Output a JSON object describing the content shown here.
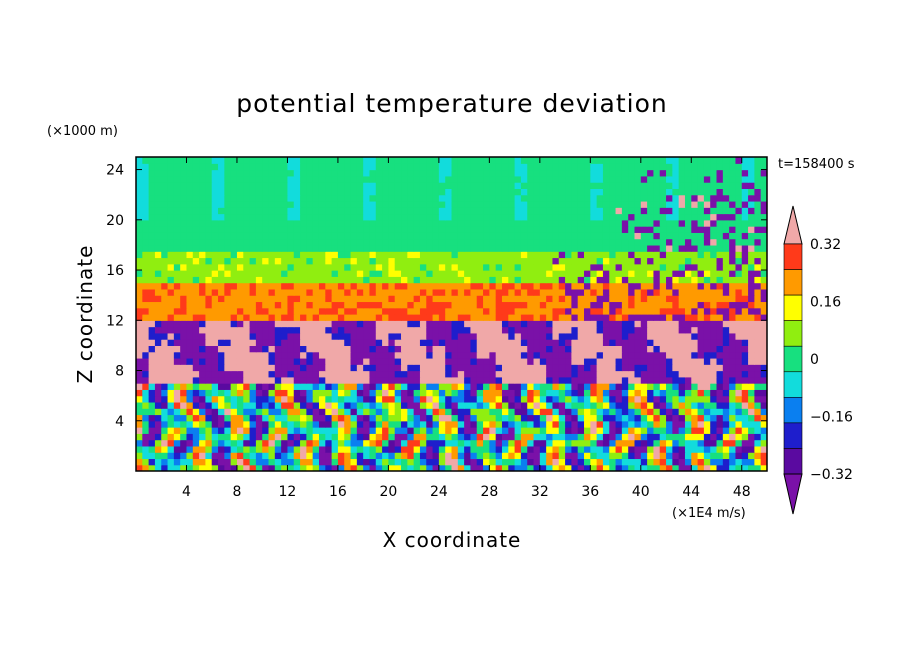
{
  "chart_data": {
    "type": "heatmap",
    "title": "potential temperature deviation",
    "xlabel": "X coordinate",
    "ylabel": "Z coordinate",
    "x_unit": "(×1E4 m/s)",
    "y_unit": "(×1000 m)",
    "time_label": "t=158400 s",
    "xlim": [
      0,
      50
    ],
    "ylim": [
      0,
      25
    ],
    "x_ticks": [
      4,
      8,
      12,
      16,
      20,
      24,
      28,
      32,
      36,
      40,
      44,
      48
    ],
    "y_ticks": [
      4,
      8,
      12,
      16,
      20,
      24
    ],
    "colorbar": {
      "levels": [
        -0.4,
        -0.32,
        -0.24,
        -0.16,
        -0.08,
        0,
        0.08,
        0.16,
        0.24,
        0.32,
        0.4
      ],
      "tick_labels": [
        "0.32",
        "0.16",
        "0",
        "−0.16",
        "−0.32"
      ],
      "tick_values": [
        0.32,
        0.16,
        0,
        -0.16,
        -0.32
      ],
      "colors": [
        "#7a11a8",
        "#5a0aa0",
        "#1e1ecc",
        "#0a7ff0",
        "#12dcdc",
        "#17e07f",
        "#90ee10",
        "#ffff00",
        "#ff9a00",
        "#ff3a1a",
        "#f0a8a8"
      ],
      "extend": "both"
    },
    "layers_by_height": [
      {
        "z_range": [
          0,
          7
        ],
        "pattern": "vertical convective cells, full color range"
      },
      {
        "z_range": [
          7,
          12
        ],
        "value": -0.36,
        "mix": "purple and pink patches"
      },
      {
        "z_range": [
          12,
          15
        ],
        "value": 0.3,
        "band": "red/orange"
      },
      {
        "z_range": [
          15,
          17.5
        ],
        "value": 0.14,
        "band": "yellow"
      },
      {
        "z_range": [
          17.5,
          25
        ],
        "value": 0.05,
        "band": "light green"
      }
    ]
  }
}
